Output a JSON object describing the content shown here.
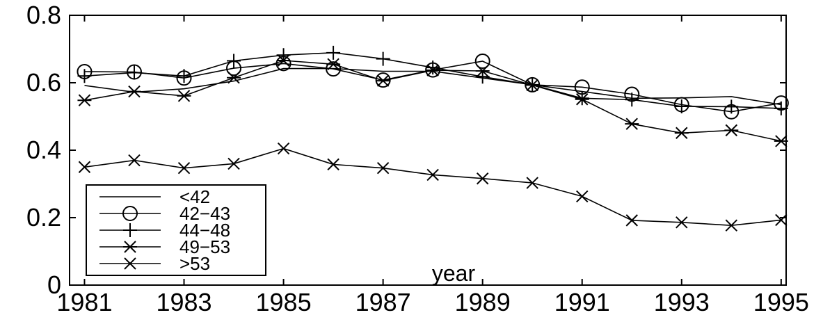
{
  "chart_data": {
    "type": "line",
    "xlabel": "year",
    "ylabel": "",
    "xlim": [
      1980.7,
      1995.1
    ],
    "ylim": [
      0,
      0.8
    ],
    "x_ticks": [
      "1981",
      "1983",
      "1985",
      "1987",
      "1989",
      "1991",
      "1993",
      "1995"
    ],
    "y_ticks": [
      "0",
      "0.2",
      "0.4",
      "0.6",
      "0.8"
    ],
    "legend_position": "bottom-left",
    "grid": false,
    "x": [
      1981,
      1982,
      1983,
      1984,
      1985,
      1986,
      1987,
      1988,
      1989,
      1990,
      1991,
      1992,
      1993,
      1994,
      1995
    ],
    "series": [
      {
        "name": "<42",
        "marker": "none",
        "values": [
          0.592,
          0.572,
          0.582,
          0.605,
          0.642,
          0.642,
          0.634,
          0.634,
          0.614,
          0.594,
          0.574,
          0.554,
          0.555,
          0.559,
          0.535
        ]
      },
      {
        "name": "42−43",
        "marker": "circle",
        "values": [
          0.633,
          0.632,
          0.614,
          0.643,
          0.657,
          0.641,
          0.608,
          0.638,
          0.664,
          0.594,
          0.587,
          0.566,
          0.535,
          0.514,
          0.54
        ]
      },
      {
        "name": "44−48",
        "marker": "plus",
        "values": [
          0.62,
          0.63,
          0.62,
          0.665,
          0.682,
          0.689,
          0.671,
          0.645,
          0.618,
          0.594,
          0.554,
          0.55,
          0.53,
          0.529,
          0.524
        ]
      },
      {
        "name": "49−53",
        "marker": "star",
        "values": [
          0.548,
          0.574,
          0.561,
          0.615,
          0.666,
          0.655,
          0.606,
          0.637,
          0.635,
          0.593,
          0.551,
          0.478,
          0.451,
          0.459,
          0.427
        ]
      },
      {
        "name": ">53",
        "marker": "x",
        "values": [
          0.35,
          0.37,
          0.347,
          0.36,
          0.405,
          0.358,
          0.347,
          0.327,
          0.316,
          0.303,
          0.263,
          0.192,
          0.186,
          0.177,
          0.193
        ]
      }
    ]
  }
}
